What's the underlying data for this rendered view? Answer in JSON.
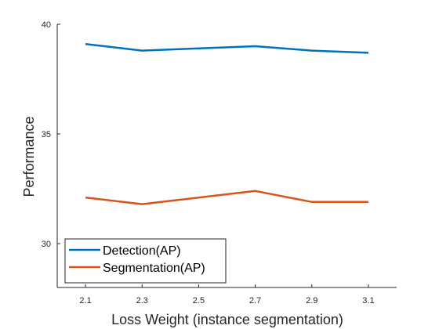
{
  "chart_data": {
    "type": "line",
    "title": "",
    "xlabel": "Loss Weight (instance segmentation)",
    "ylabel": "Performance",
    "x": [
      2.1,
      2.3,
      2.5,
      2.7,
      2.9,
      3.1
    ],
    "xtick_labels": [
      "2.1",
      "2.3",
      "2.5",
      "2.7",
      "2.9",
      "3.1"
    ],
    "ytick_values": [
      30,
      35,
      40
    ],
    "ytick_labels": [
      "30",
      "35",
      "40"
    ],
    "xlim": [
      2.0,
      3.2
    ],
    "ylim": [
      28,
      40
    ],
    "grid": false,
    "legend_position": "bottom-left",
    "series": [
      {
        "name": "Detection(AP)",
        "color": "#0072BD",
        "values": [
          39.1,
          38.8,
          38.9,
          39.0,
          38.8,
          38.7
        ]
      },
      {
        "name": "Segmentation(AP)",
        "color": "#D95319",
        "values": [
          32.1,
          31.8,
          32.1,
          32.4,
          31.9,
          31.9
        ]
      }
    ]
  }
}
